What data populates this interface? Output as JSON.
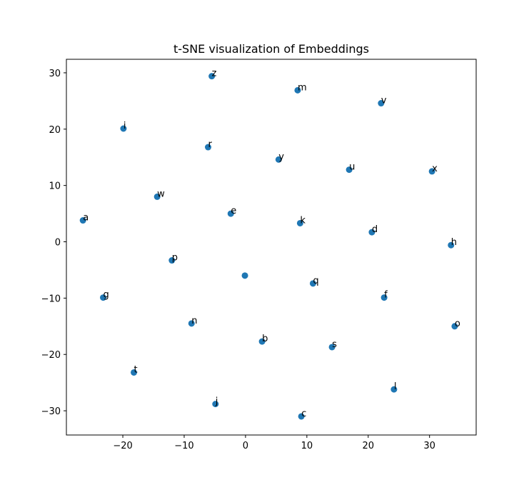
{
  "chart_data": {
    "type": "scatter",
    "title": "t-SNE visualization of Embeddings",
    "xlabel": "",
    "ylabel": "",
    "xlim": [
      -29.2,
      37.6
    ],
    "ylim": [
      -34.3,
      32.4
    ],
    "xticks": [
      -20,
      -10,
      0,
      10,
      20,
      30
    ],
    "yticks": [
      -30,
      -20,
      -10,
      0,
      10,
      20,
      30
    ],
    "grid": false,
    "legend": "none",
    "marker_color": "#1f77b4",
    "points": [
      {
        "label": "a",
        "x": -26.5,
        "y": 3.8
      },
      {
        "label": "b",
        "x": 2.7,
        "y": -17.7
      },
      {
        "label": "c",
        "x": 9.1,
        "y": -31.0
      },
      {
        "label": "d",
        "x": 20.6,
        "y": 1.7
      },
      {
        "label": "e",
        "x": -2.4,
        "y": 5.0
      },
      {
        "label": "f",
        "x": 22.6,
        "y": -9.9
      },
      {
        "label": "g",
        "x": -23.2,
        "y": -9.9
      },
      {
        "label": "h",
        "x": 33.5,
        "y": -0.6
      },
      {
        "label": "i",
        "x": -19.9,
        "y": 20.1
      },
      {
        "label": "j",
        "x": -4.9,
        "y": -28.8
      },
      {
        "label": "k",
        "x": 8.9,
        "y": 3.3
      },
      {
        "label": "l",
        "x": 24.2,
        "y": -26.2
      },
      {
        "label": "m",
        "x": 8.5,
        "y": 26.9
      },
      {
        "label": "n",
        "x": -8.8,
        "y": -14.5
      },
      {
        "label": "o",
        "x": 34.1,
        "y": -15.0
      },
      {
        "label": "p",
        "x": -12.0,
        "y": -3.3
      },
      {
        "label": "q",
        "x": 11.0,
        "y": -7.4
      },
      {
        "label": "r",
        "x": -6.1,
        "y": 16.8
      },
      {
        "label": "s",
        "x": 14.1,
        "y": -18.7
      },
      {
        "label": "t",
        "x": -18.2,
        "y": -23.2
      },
      {
        "label": "u",
        "x": 16.9,
        "y": 12.8
      },
      {
        "label": "v",
        "x": 22.1,
        "y": 24.6
      },
      {
        "label": "w",
        "x": -14.4,
        "y": 8.0
      },
      {
        "label": "x",
        "x": 30.4,
        "y": 12.5
      },
      {
        "label": "y",
        "x": 5.4,
        "y": 14.6
      },
      {
        "label": "z",
        "x": -5.5,
        "y": 29.4
      },
      {
        "label": "",
        "x": -0.1,
        "y": -6.0
      }
    ]
  }
}
